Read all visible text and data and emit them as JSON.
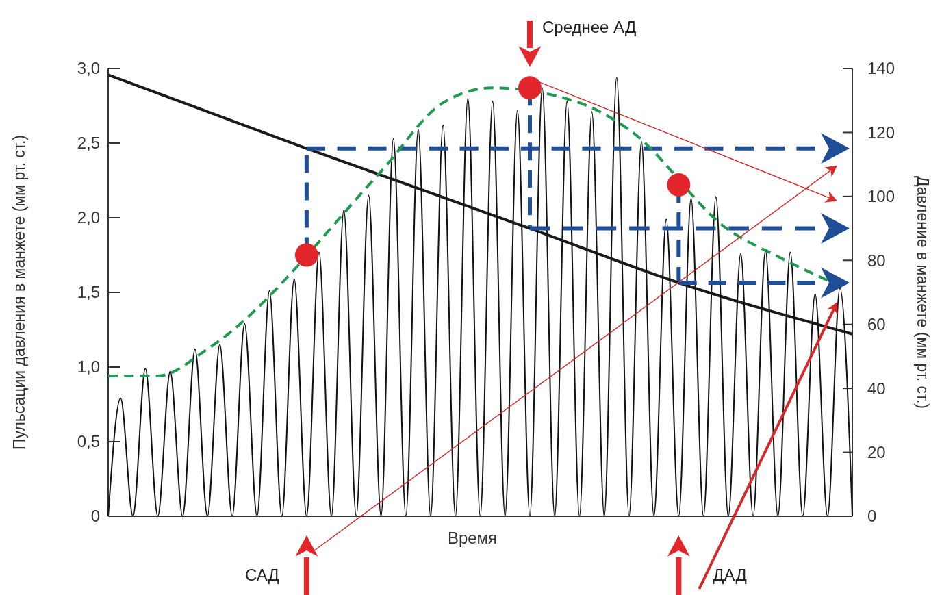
{
  "chart_data": {
    "type": "line",
    "xlabel": "Время",
    "ylabel": "Пульсации давления в манжете (мм рт. ст.)",
    "y2label": "Давление в манжете (мм рт. ст.)",
    "categories": [
      null,
      null,
      null,
      null,
      null,
      null,
      null,
      null,
      null,
      null,
      null,
      null,
      null,
      null,
      null,
      null,
      null,
      null,
      null,
      null,
      null,
      null,
      null,
      null,
      null,
      null,
      null,
      null,
      null,
      null,
      null,
      null,
      null,
      null,
      null,
      null,
      null,
      null,
      null,
      null,
      null,
      null,
      null,
      null,
      null,
      null,
      null,
      null,
      null,
      null,
      null,
      null,
      null,
      null,
      null,
      null,
      null,
      null,
      null,
      null,
      null
    ],
    "ylim": [
      0,
      3
    ],
    "yticks": [
      0,
      {
        "value": 0.5,
        "label": "0,5"
      },
      {
        "value": 1,
        "label": "1,0"
      },
      {
        "value": 1.5,
        "label": "1,5"
      },
      {
        "value": 2,
        "label": "2,0"
      },
      {
        "value": 2.5,
        "label": "2,5"
      },
      {
        "value": 3,
        "label": "3,0"
      }
    ],
    "y2lim": [
      0,
      140
    ],
    "y2ticks": [
      0,
      20,
      40,
      60,
      80,
      100,
      120,
      140
    ],
    "series": [
      {
        "color": "#111111",
        "values": [
          0,
          0.79,
          0,
          0.99,
          0,
          0.97,
          0,
          1.12,
          0,
          1.15,
          0,
          1.29,
          0,
          1.51,
          0,
          1.59,
          0,
          1.77,
          0,
          2.05,
          0,
          2.15,
          0,
          2.53,
          0,
          2.59,
          0,
          2.62,
          0,
          2.8,
          0,
          2.78,
          0,
          2.72,
          0,
          2.87,
          0,
          2.78,
          0,
          2.71,
          0,
          2.94,
          0,
          2.51,
          0,
          1.99,
          0,
          2.13,
          0,
          2.14,
          0,
          1.76,
          0,
          1.78,
          0,
          1.77,
          0,
          1.49,
          0,
          1.53,
          0
        ]
      },
      {
        "axis": "y2",
        "color": "#1a1a1a",
        "values": [
          138,
          null,
          null,
          null,
          null,
          null,
          null,
          null,
          null,
          null,
          null,
          null,
          null,
          null,
          null,
          null,
          115,
          null,
          null,
          null,
          null,
          null,
          null,
          null,
          null,
          null,
          null,
          null,
          null,
          null,
          null,
          null,
          null,
          null,
          90,
          null,
          null,
          null,
          null,
          null,
          null,
          null,
          null,
          null,
          null,
          null,
          73,
          null,
          null,
          null,
          null,
          null,
          null,
          null,
          null,
          null,
          null,
          null,
          null,
          null,
          57
        ]
      },
      {
        "axis": "y2",
        "color": "#1f4e96",
        "line_style": "dashed",
        "values": [
          null,
          null,
          null,
          null,
          null,
          null,
          null,
          null,
          null,
          null,
          null,
          null,
          null,
          null,
          null,
          null,
          115,
          null,
          null,
          null,
          null,
          null,
          null,
          null,
          null,
          null,
          null,
          null,
          null,
          null,
          null,
          null,
          null,
          null,
          null,
          null,
          null,
          null,
          null,
          null,
          null,
          null,
          null,
          null,
          null,
          null,
          null,
          null,
          null,
          null,
          null,
          null,
          null,
          null,
          null,
          null,
          null,
          115,
          null,
          null,
          null
        ]
      },
      {
        "axis": "y2",
        "color": "#1f4e96",
        "line_style": "dashed",
        "values": [
          null,
          null,
          null,
          null,
          null,
          null,
          null,
          null,
          null,
          null,
          null,
          null,
          null,
          null,
          null,
          null,
          null,
          null,
          null,
          null,
          null,
          null,
          null,
          null,
          null,
          null,
          null,
          null,
          null,
          null,
          null,
          null,
          null,
          null,
          90,
          null,
          null,
          null,
          null,
          null,
          null,
          null,
          null,
          null,
          null,
          null,
          null,
          null,
          null,
          null,
          null,
          null,
          null,
          null,
          null,
          null,
          null,
          90,
          null,
          null,
          null
        ]
      },
      {
        "axis": "y2",
        "color": "#1f4e96",
        "line_style": "dashed",
        "values": [
          null,
          null,
          null,
          null,
          null,
          null,
          null,
          null,
          null,
          null,
          null,
          null,
          null,
          null,
          null,
          null,
          null,
          null,
          null,
          null,
          null,
          null,
          null,
          null,
          null,
          null,
          null,
          null,
          null,
          null,
          null,
          null,
          null,
          null,
          null,
          null,
          null,
          null,
          null,
          null,
          null,
          null,
          null,
          null,
          null,
          null,
          73,
          null,
          null,
          null,
          null,
          null,
          null,
          null,
          null,
          null,
          null,
          73,
          null,
          null,
          null
        ]
      },
      {
        "color": "#1f9a50",
        "line_style": "dashed",
        "values": [
          0.94,
          null,
          null,
          null,
          0.94,
          null,
          null,
          null,
          1.12,
          null,
          null,
          null,
          null,
          null,
          null,
          null,
          null,
          null,
          null,
          null,
          null,
          null,
          2.31,
          null,
          null,
          null,
          null,
          2.77,
          null,
          null,
          null,
          2.87,
          null,
          null,
          null,
          null,
          null,
          null,
          2.77,
          null,
          null,
          null,
          2.59,
          null,
          null,
          null,
          null,
          null,
          null,
          null,
          1.92,
          null,
          null,
          null,
          1.74,
          null,
          null,
          null,
          1.58,
          null,
          null
        ]
      },
      {
        "type": "scatter",
        "color": "#e3262b",
        "marker": "circle",
        "values": [
          null,
          null,
          null,
          null,
          null,
          null,
          null,
          null,
          null,
          null,
          null,
          null,
          null,
          null,
          null,
          null,
          1.75,
          null,
          null,
          null,
          null,
          null,
          null,
          null,
          null,
          null,
          null,
          null,
          null,
          null,
          null,
          null,
          null,
          null,
          2.87,
          null,
          null,
          null,
          null,
          null,
          null,
          null,
          null,
          null,
          null,
          null,
          2.22,
          null,
          null,
          null,
          null,
          null,
          null,
          null,
          null,
          null,
          null,
          null,
          null,
          null,
          null
        ]
      }
    ],
    "annotations": [
      "САД",
      "Среднее АД",
      "ДАД"
    ]
  }
}
